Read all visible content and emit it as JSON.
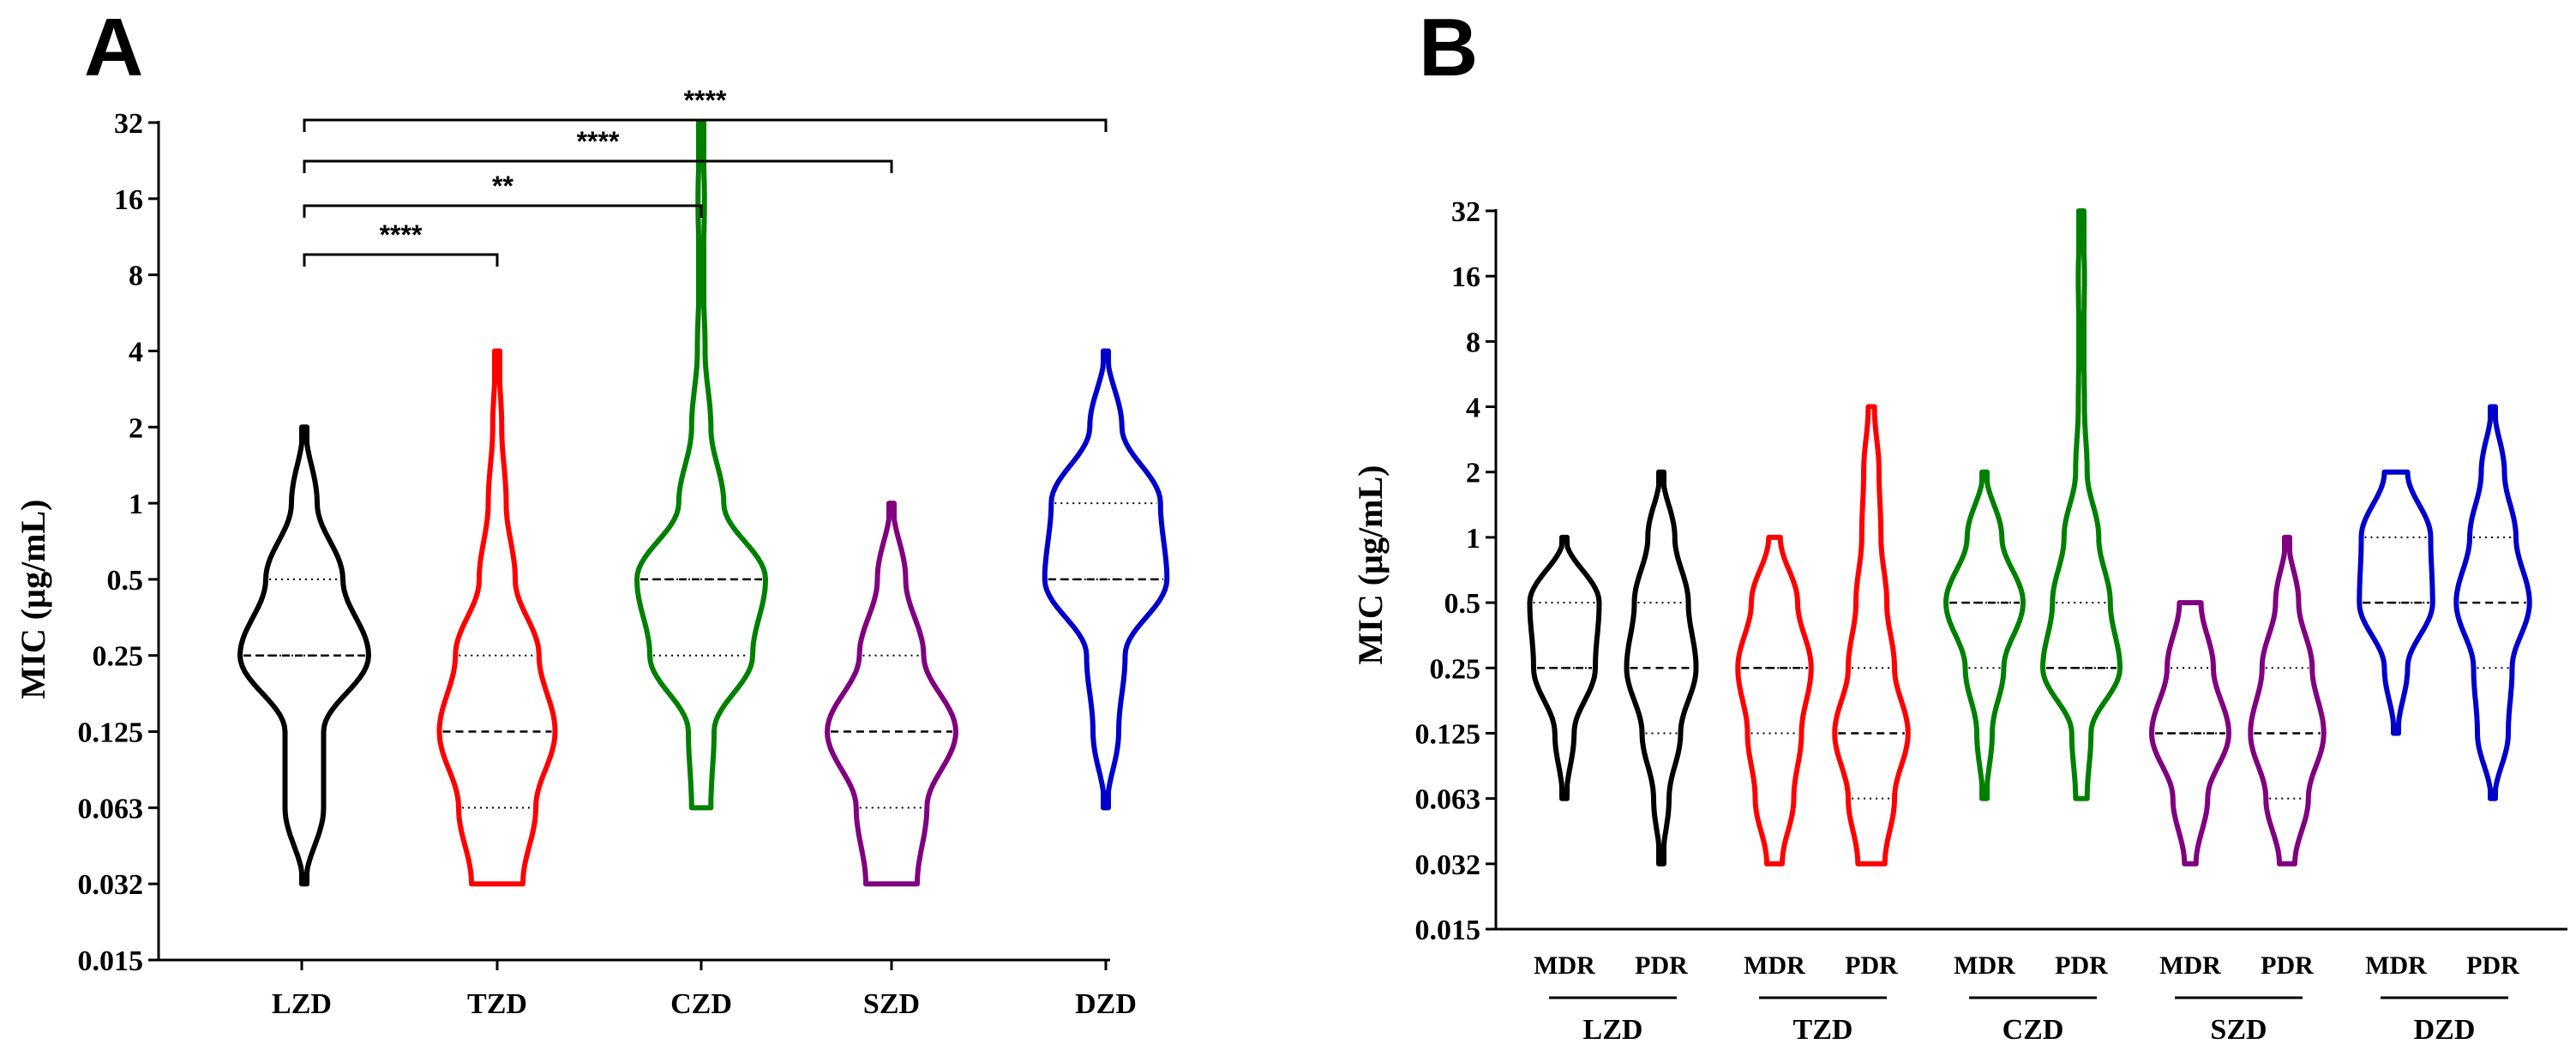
{
  "chart_data": [
    {
      "panel": "A",
      "type": "violin",
      "ylabel": "MIC (µg/mL)",
      "yscale": "log2",
      "ylim": [
        0.015,
        32
      ],
      "yticks": [
        0.015,
        0.032,
        0.063,
        0.125,
        0.25,
        0.5,
        1,
        2,
        4,
        8,
        16,
        32
      ],
      "ytick_labels": [
        "0.015",
        "0.032",
        "0.063",
        "0.125",
        "0.25",
        "0.5",
        "1",
        "2",
        "4",
        "8",
        "16",
        "32"
      ],
      "categories": [
        "LZD",
        "TZD",
        "CZD",
        "SZD",
        "DZD"
      ],
      "series": [
        {
          "name": "LZD",
          "color": "#000000",
          "min": 0.032,
          "max": 2,
          "median": 0.25,
          "q1": 0.25,
          "q3": 0.5,
          "density": [
            [
              0.032,
              0.02
            ],
            [
              0.063,
              0.3
            ],
            [
              0.125,
              0.3
            ],
            [
              0.25,
              1.0
            ],
            [
              0.5,
              0.6
            ],
            [
              1,
              0.2
            ],
            [
              2,
              0.02
            ]
          ]
        },
        {
          "name": "TZD",
          "color": "#ff0000",
          "min": 0.032,
          "max": 4,
          "median": 0.125,
          "q1": 0.063,
          "q3": 0.25,
          "density": [
            [
              0.032,
              0.4
            ],
            [
              0.063,
              0.6
            ],
            [
              0.125,
              0.9
            ],
            [
              0.25,
              0.65
            ],
            [
              0.5,
              0.28
            ],
            [
              1,
              0.14
            ],
            [
              2,
              0.07
            ],
            [
              4,
              0.02
            ]
          ]
        },
        {
          "name": "CZD",
          "color": "#008000",
          "min": 0.063,
          "max": 32,
          "median": 0.5,
          "q1": 0.25,
          "q3": 0.5,
          "density": [
            [
              0.063,
              0.15
            ],
            [
              0.125,
              0.2
            ],
            [
              0.25,
              0.8
            ],
            [
              0.5,
              1.0
            ],
            [
              1,
              0.35
            ],
            [
              2,
              0.15
            ],
            [
              4,
              0.06
            ],
            [
              8,
              0.03
            ],
            [
              16,
              0.05
            ],
            [
              32,
              0.02
            ]
          ]
        },
        {
          "name": "SZD",
          "color": "#800080",
          "min": 0.032,
          "max": 1,
          "median": 0.125,
          "q1": 0.063,
          "q3": 0.25,
          "density": [
            [
              0.032,
              0.4
            ],
            [
              0.063,
              0.55
            ],
            [
              0.125,
              1.0
            ],
            [
              0.25,
              0.5
            ],
            [
              0.5,
              0.22
            ],
            [
              1,
              0.02
            ]
          ]
        },
        {
          "name": "DZD",
          "color": "#0000cd",
          "min": 0.063,
          "max": 4,
          "median": 0.5,
          "q1": 0.5,
          "q3": 1,
          "density": [
            [
              0.063,
              0.02
            ],
            [
              0.125,
              0.2
            ],
            [
              0.25,
              0.3
            ],
            [
              0.5,
              0.95
            ],
            [
              1,
              0.85
            ],
            [
              2,
              0.25
            ],
            [
              4,
              0.02
            ]
          ]
        }
      ],
      "significance": [
        {
          "from": "LZD",
          "to": "TZD",
          "label": "****"
        },
        {
          "from": "LZD",
          "to": "CZD",
          "label": "**"
        },
        {
          "from": "LZD",
          "to": "SZD",
          "label": "****"
        },
        {
          "from": "LZD",
          "to": "DZD",
          "label": "****"
        }
      ]
    },
    {
      "panel": "B",
      "type": "violin",
      "ylabel": "MIC (µg/mL)",
      "yscale": "log2",
      "ylim": [
        0.015,
        32
      ],
      "yticks": [
        0.015,
        0.032,
        0.063,
        0.125,
        0.25,
        0.5,
        1,
        2,
        4,
        8,
        16,
        32
      ],
      "ytick_labels": [
        "0.015",
        "0.032",
        "0.063",
        "0.125",
        "0.25",
        "0.5",
        "1",
        "2",
        "4",
        "8",
        "16",
        "32"
      ],
      "groups": [
        "LZD",
        "TZD",
        "CZD",
        "SZD",
        "DZD"
      ],
      "subcategories": [
        "MDR",
        "PDR"
      ],
      "series": [
        {
          "group": "LZD",
          "sub": "MDR",
          "color": "#000000",
          "min": 0.063,
          "max": 1,
          "median": 0.25,
          "q1": 0.25,
          "q3": 0.5,
          "density": [
            [
              0.063,
              0.05
            ],
            [
              0.125,
              0.25
            ],
            [
              0.25,
              0.8
            ],
            [
              0.5,
              0.9
            ],
            [
              1,
              0.03
            ]
          ]
        },
        {
          "group": "LZD",
          "sub": "PDR",
          "color": "#000000",
          "min": 0.032,
          "max": 2,
          "median": 0.25,
          "q1": 0.125,
          "q3": 0.5,
          "density": [
            [
              0.032,
              0.03
            ],
            [
              0.063,
              0.2
            ],
            [
              0.125,
              0.5
            ],
            [
              0.25,
              0.9
            ],
            [
              0.5,
              0.7
            ],
            [
              1,
              0.35
            ],
            [
              2,
              0.03
            ]
          ]
        },
        {
          "group": "TZD",
          "sub": "MDR",
          "color": "#ff0000",
          "min": 0.032,
          "max": 1,
          "median": 0.25,
          "q1": 0.125,
          "q3": 0.25,
          "density": [
            [
              0.032,
              0.2
            ],
            [
              0.063,
              0.5
            ],
            [
              0.125,
              0.7
            ],
            [
              0.25,
              0.95
            ],
            [
              0.5,
              0.6
            ],
            [
              1,
              0.15
            ]
          ]
        },
        {
          "group": "TZD",
          "sub": "PDR",
          "color": "#ff0000",
          "min": 0.032,
          "max": 4,
          "median": 0.125,
          "q1": 0.063,
          "q3": 0.25,
          "density": [
            [
              0.032,
              0.35
            ],
            [
              0.063,
              0.6
            ],
            [
              0.125,
              0.95
            ],
            [
              0.25,
              0.6
            ],
            [
              0.5,
              0.4
            ],
            [
              1,
              0.25
            ],
            [
              2,
              0.2
            ],
            [
              4,
              0.08
            ]
          ]
        },
        {
          "group": "CZD",
          "sub": "MDR",
          "color": "#008000",
          "min": 0.063,
          "max": 2,
          "median": 0.5,
          "q1": 0.25,
          "q3": 0.5,
          "density": [
            [
              0.063,
              0.05
            ],
            [
              0.125,
              0.2
            ],
            [
              0.25,
              0.5
            ],
            [
              0.5,
              1.0
            ],
            [
              1,
              0.45
            ],
            [
              2,
              0.04
            ]
          ]
        },
        {
          "group": "CZD",
          "sub": "PDR",
          "color": "#008000",
          "min": 0.063,
          "max": 32,
          "median": 0.25,
          "q1": 0.25,
          "q3": 0.5,
          "density": [
            [
              0.063,
              0.15
            ],
            [
              0.125,
              0.25
            ],
            [
              0.25,
              1.0
            ],
            [
              0.5,
              0.75
            ],
            [
              1,
              0.45
            ],
            [
              2,
              0.15
            ],
            [
              4,
              0.08
            ],
            [
              8,
              0.06
            ],
            [
              16,
              0.08
            ],
            [
              32,
              0.03
            ]
          ]
        },
        {
          "group": "SZD",
          "sub": "MDR",
          "color": "#800080",
          "min": 0.032,
          "max": 0.5,
          "median": 0.125,
          "q1": 0.125,
          "q3": 0.25,
          "density": [
            [
              0.032,
              0.15
            ],
            [
              0.063,
              0.45
            ],
            [
              0.125,
              1.0
            ],
            [
              0.25,
              0.6
            ],
            [
              0.5,
              0.28
            ]
          ]
        },
        {
          "group": "SZD",
          "sub": "PDR",
          "color": "#800080",
          "min": 0.032,
          "max": 1,
          "median": 0.125,
          "q1": 0.063,
          "q3": 0.25,
          "density": [
            [
              0.032,
              0.2
            ],
            [
              0.063,
              0.55
            ],
            [
              0.125,
              0.95
            ],
            [
              0.25,
              0.65
            ],
            [
              0.5,
              0.3
            ],
            [
              1,
              0.03
            ]
          ]
        },
        {
          "group": "DZD",
          "sub": "MDR",
          "color": "#0000cd",
          "min": 0.125,
          "max": 2,
          "median": 0.5,
          "q1": 0.5,
          "q3": 1,
          "density": [
            [
              0.125,
              0.05
            ],
            [
              0.25,
              0.3
            ],
            [
              0.5,
              0.95
            ],
            [
              1,
              0.9
            ],
            [
              2,
              0.3
            ]
          ]
        },
        {
          "group": "DZD",
          "sub": "PDR",
          "color": "#0000cd",
          "min": 0.063,
          "max": 4,
          "median": 0.5,
          "q1": 0.25,
          "q3": 1,
          "density": [
            [
              0.063,
              0.05
            ],
            [
              0.125,
              0.4
            ],
            [
              0.25,
              0.5
            ],
            [
              0.5,
              0.95
            ],
            [
              1,
              0.6
            ],
            [
              2,
              0.3
            ],
            [
              4,
              0.04
            ]
          ]
        }
      ]
    }
  ]
}
